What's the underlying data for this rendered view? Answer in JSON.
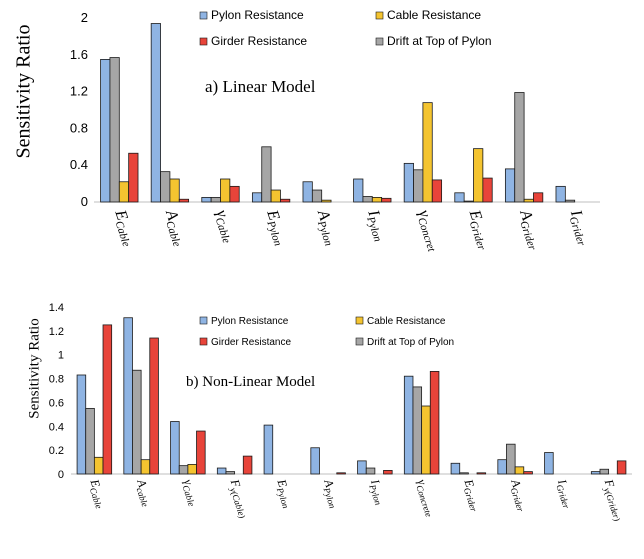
{
  "colors": {
    "Pylon Resistance": "#8fb4e3",
    "Cable Resistance": "#f4c430",
    "Girder Resistance": "#e8443a",
    "Drift at Top of Pylon": "#a6a6a6"
  },
  "chart_data": [
    {
      "type": "bar",
      "title": "a) Linear Model",
      "ylabel": "Sensitivity Ratio",
      "ylim": [
        0,
        2
      ],
      "yticks": [
        "0",
        "0.4",
        "0.8",
        "1.2",
        "1.6",
        "2"
      ],
      "legend_labels": [
        "Pylon Resistance",
        "Cable Resistance",
        "Girder Resistance",
        "Drift at Top of Pylon"
      ],
      "categories": [
        {
          "label": "E",
          "sub": "Cable"
        },
        {
          "label": "A",
          "sub": "Cable"
        },
        {
          "label": "γ",
          "sub": "Cable"
        },
        {
          "label": "E",
          "sub": "Pylon"
        },
        {
          "label": "A",
          "sub": "Pylon"
        },
        {
          "label": "I",
          "sub": "Pylon"
        },
        {
          "label": "γ",
          "sub": "Concret"
        },
        {
          "label": "E",
          "sub": "Grider"
        },
        {
          "label": "A",
          "sub": "Grider"
        },
        {
          "label": "I",
          "sub": "Grider"
        }
      ],
      "series": [
        {
          "name": "Pylon Resistance",
          "values": [
            1.55,
            1.94,
            0.05,
            0.1,
            0.22,
            0.25,
            0.42,
            0.1,
            0.36,
            0.17
          ]
        },
        {
          "name": "Drift at Top of Pylon",
          "values": [
            1.57,
            0.33,
            0.05,
            0.6,
            0.13,
            0.06,
            0.35,
            0.01,
            1.19,
            0.02
          ]
        },
        {
          "name": "Cable Resistance",
          "values": [
            0.22,
            0.25,
            0.25,
            0.13,
            0.02,
            0.05,
            1.08,
            0.58,
            0.03,
            0.0
          ]
        },
        {
          "name": "Girder Resistance",
          "values": [
            0.53,
            0.03,
            0.17,
            0.03,
            0.0,
            0.04,
            0.24,
            0.26,
            0.1,
            0.0
          ]
        }
      ]
    },
    {
      "type": "bar",
      "title": "b) Non-Linear Model",
      "ylabel": "Sensitivity Ratio",
      "ylim": [
        0,
        1.4
      ],
      "yticks": [
        "0",
        "0.2",
        "0.4",
        "0.6",
        "0.8",
        "1",
        "1.2",
        "1.4"
      ],
      "legend_labels": [
        "Pylon Resistance",
        "Cable Resistance",
        "Girder Resistance",
        "Drift at Top of Pylon"
      ],
      "categories": [
        {
          "label": "E",
          "sub": "Cable"
        },
        {
          "label": "A",
          "sub": "cable"
        },
        {
          "label": "γ",
          "sub": "Cable"
        },
        {
          "label": "F",
          "sub": "y(Cable)"
        },
        {
          "label": "E",
          "sub": "Pylon"
        },
        {
          "label": "A",
          "sub": "Pylon"
        },
        {
          "label": "I",
          "sub": "Pylon"
        },
        {
          "label": "γ",
          "sub": "Concrete"
        },
        {
          "label": "E",
          "sub": "Grider"
        },
        {
          "label": "A",
          "sub": "Grider"
        },
        {
          "label": "I",
          "sub": "Grider"
        },
        {
          "label": "F",
          "sub": "y(Grider)"
        }
      ],
      "series": [
        {
          "name": "Pylon Resistance",
          "values": [
            0.83,
            1.31,
            0.44,
            0.05,
            0.41,
            0.22,
            0.11,
            0.82,
            0.09,
            0.12,
            0.18,
            0.02
          ]
        },
        {
          "name": "Drift at Top of Pylon",
          "values": [
            0.55,
            0.87,
            0.07,
            0.02,
            0.0,
            0.0,
            0.05,
            0.73,
            0.01,
            0.25,
            0.0,
            0.04
          ]
        },
        {
          "name": "Cable Resistance",
          "values": [
            0.14,
            0.12,
            0.08,
            0.0,
            0.0,
            0.0,
            0.0,
            0.57,
            0.0,
            0.06,
            0.0,
            0.0
          ]
        },
        {
          "name": "Girder Resistance",
          "values": [
            1.25,
            1.14,
            0.36,
            0.15,
            0.0,
            0.01,
            0.03,
            0.86,
            0.01,
            0.02,
            0.0,
            0.11
          ]
        }
      ]
    }
  ]
}
